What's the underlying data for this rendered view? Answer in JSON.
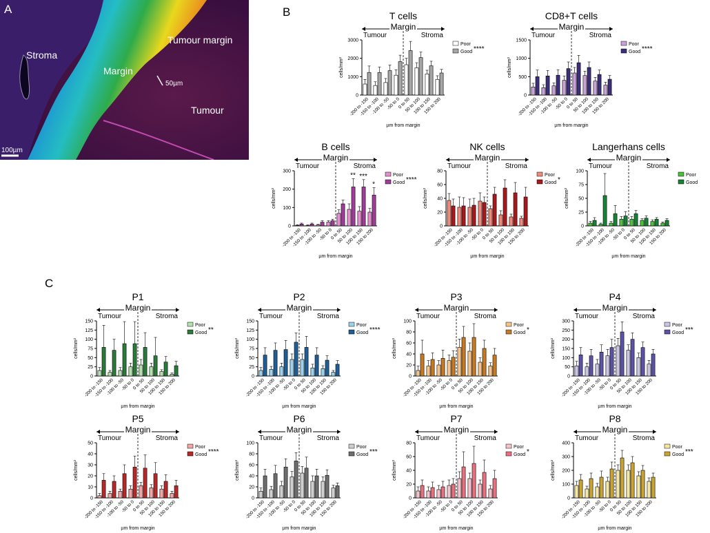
{
  "panels": {
    "a": "A",
    "b": "B",
    "c": "C"
  },
  "micrograph": {
    "labels": {
      "stroma": "Stroma",
      "margin": "Margin",
      "tumour_margin": "Tumour margin",
      "tumour": "Tumour"
    },
    "scale_small": "50µm",
    "scale_bar": "100µm"
  },
  "common": {
    "margin": "Margin",
    "tumour": "Tumour",
    "stroma": "Stroma",
    "xlabel": "µm from margin",
    "ylabel": "cells/mm²",
    "poor": "Poor",
    "good": "Good",
    "categories": [
      "-200 to -150",
      "-150 to -100",
      "-100 to -50",
      "-50 to 0",
      "0 to 50",
      "50 to 100",
      "100 to 150",
      "150 to 200"
    ]
  },
  "chart_data": [
    {
      "id": "tcells",
      "type": "bar",
      "title": "T cells",
      "sig": "****",
      "ylim": [
        0,
        3000
      ],
      "ticks": [
        0,
        1000,
        2000,
        3000
      ],
      "colors": {
        "poor": "#ffffff",
        "good": "#a6a6a6"
      },
      "series": [
        {
          "name": "Poor",
          "values": [
            600,
            520,
            680,
            1080,
            1650,
            1480,
            1150,
            850
          ],
          "errors": [
            250,
            200,
            220,
            300,
            350,
            280,
            200,
            200
          ]
        },
        {
          "name": "Good",
          "values": [
            1230,
            1230,
            1330,
            1820,
            2420,
            2040,
            1590,
            1200
          ],
          "errors": [
            350,
            300,
            300,
            350,
            500,
            300,
            250,
            200
          ]
        }
      ]
    },
    {
      "id": "cd8",
      "type": "bar",
      "title": "CD8+T cells",
      "sig": "****",
      "ylim": [
        0,
        1500
      ],
      "ticks": [
        0,
        500,
        1000,
        1500
      ],
      "colors": {
        "poor": "#c9a3d6",
        "good": "#3b2f7a"
      },
      "series": [
        {
          "name": "Poor",
          "values": [
            220,
            200,
            250,
            400,
            600,
            530,
            380,
            270
          ],
          "errors": [
            100,
            80,
            80,
            120,
            150,
            120,
            100,
            80
          ]
        },
        {
          "name": "Good",
          "values": [
            500,
            520,
            540,
            720,
            880,
            750,
            560,
            430
          ],
          "errors": [
            180,
            150,
            150,
            180,
            200,
            150,
            120,
            100
          ]
        }
      ]
    },
    {
      "id": "bcells",
      "type": "bar",
      "title": "B cells",
      "sig": "****",
      "ylim": [
        0,
        300
      ],
      "ticks": [
        0,
        100,
        200,
        300
      ],
      "colors": {
        "poor": "#e58fd0",
        "good": "#a23c9a"
      },
      "bar_sig": [
        "",
        "",
        "",
        "",
        "",
        "**",
        "***",
        "*"
      ],
      "series": [
        {
          "name": "Poor",
          "values": [
            3,
            2,
            5,
            20,
            68,
            90,
            80,
            75
          ],
          "errors": [
            3,
            3,
            3,
            8,
            20,
            30,
            25,
            20
          ]
        },
        {
          "name": "Good",
          "values": [
            10,
            10,
            20,
            28,
            120,
            212,
            212,
            168
          ],
          "errors": [
            5,
            5,
            8,
            8,
            20,
            45,
            40,
            40
          ]
        }
      ]
    },
    {
      "id": "nkcells",
      "type": "bar",
      "title": "NK cells",
      "sig": "*",
      "ylim": [
        0,
        80
      ],
      "ticks": [
        0,
        20,
        40,
        60,
        80
      ],
      "colors": {
        "poor": "#f08a7a",
        "good": "#a8191e"
      },
      "series": [
        {
          "name": "Poor",
          "values": [
            37,
            27,
            27,
            36,
            25,
            16,
            13,
            11
          ],
          "errors": [
            10,
            15,
            12,
            12,
            4,
            6,
            4,
            3
          ]
        },
        {
          "name": "Good",
          "values": [
            29,
            29,
            30,
            34,
            46,
            55,
            48,
            42
          ],
          "errors": [
            10,
            12,
            10,
            8,
            10,
            12,
            15,
            14
          ]
        }
      ]
    },
    {
      "id": "langerhans",
      "type": "bar",
      "title": "Langerhans cells",
      "sig": "",
      "ylim": [
        0,
        100
      ],
      "ticks": [
        0,
        25,
        50,
        75,
        100
      ],
      "colors": {
        "poor": "#4cc13f",
        "good": "#178233"
      },
      "series": [
        {
          "name": "Poor",
          "values": [
            5,
            3,
            5,
            12,
            12,
            10,
            8,
            5
          ],
          "errors": [
            3,
            2,
            3,
            5,
            5,
            3,
            3,
            2
          ]
        },
        {
          "name": "Good",
          "values": [
            10,
            55,
            22,
            18,
            22,
            14,
            12,
            10
          ],
          "errors": [
            5,
            40,
            15,
            8,
            6,
            4,
            3,
            3
          ]
        }
      ]
    },
    {
      "id": "p1",
      "type": "bar",
      "title": "P1",
      "sig": "**",
      "ylim": [
        0,
        150
      ],
      "ticks": [
        0,
        25,
        50,
        75,
        100,
        125,
        150
      ],
      "colors": {
        "poor": "#b7e0b0",
        "good": "#2a7a3a"
      },
      "series": [
        {
          "name": "Poor",
          "values": [
            15,
            10,
            15,
            25,
            30,
            25,
            12,
            5
          ],
          "errors": [
            8,
            5,
            8,
            10,
            15,
            10,
            5,
            3
          ]
        },
        {
          "name": "Good",
          "values": [
            78,
            70,
            88,
            88,
            78,
            55,
            38,
            28
          ],
          "errors": [
            60,
            30,
            60,
            60,
            40,
            50,
            15,
            12
          ]
        }
      ]
    },
    {
      "id": "p2",
      "type": "bar",
      "title": "P2",
      "sig": "****",
      "ylim": [
        0,
        150
      ],
      "ticks": [
        0,
        25,
        50,
        75,
        100,
        125,
        150
      ],
      "colors": {
        "poor": "#9dd2ee",
        "good": "#1f5f96"
      },
      "series": [
        {
          "name": "Poor",
          "values": [
            15,
            18,
            25,
            45,
            45,
            22,
            20,
            10
          ],
          "errors": [
            8,
            8,
            10,
            15,
            15,
            10,
            8,
            5
          ]
        },
        {
          "name": "Good",
          "values": [
            57,
            70,
            72,
            92,
            78,
            57,
            43,
            32
          ],
          "errors": [
            20,
            20,
            25,
            25,
            30,
            20,
            12,
            10
          ]
        }
      ]
    },
    {
      "id": "p3",
      "type": "bar",
      "title": "P3",
      "sig": "*",
      "ylim": [
        0,
        100
      ],
      "ticks": [
        0,
        20,
        40,
        60,
        80,
        100
      ],
      "colors": {
        "poor": "#f6c48a",
        "good": "#c77a23"
      },
      "series": [
        {
          "name": "Poor",
          "values": [
            10,
            18,
            20,
            28,
            52,
            45,
            25,
            18
          ],
          "errors": [
            8,
            10,
            8,
            10,
            15,
            15,
            8,
            6
          ]
        },
        {
          "name": "Good",
          "values": [
            40,
            30,
            32,
            34,
            70,
            70,
            50,
            38
          ],
          "errors": [
            25,
            12,
            15,
            12,
            20,
            25,
            15,
            12
          ]
        }
      ]
    },
    {
      "id": "p4",
      "type": "bar",
      "title": "P4",
      "sig": "***",
      "ylim": [
        0,
        300
      ],
      "ticks": [
        0,
        50,
        100,
        150,
        200,
        250,
        300
      ],
      "colors": {
        "poor": "#ccc6e6",
        "good": "#5d53a6"
      },
      "series": [
        {
          "name": "Poor",
          "values": [
            55,
            50,
            65,
            110,
            165,
            140,
            100,
            65
          ],
          "errors": [
            25,
            20,
            25,
            35,
            40,
            30,
            25,
            20
          ]
        },
        {
          "name": "Good",
          "values": [
            115,
            110,
            130,
            155,
            240,
            200,
            155,
            120
          ],
          "errors": [
            40,
            35,
            40,
            45,
            55,
            35,
            30,
            25
          ]
        }
      ]
    },
    {
      "id": "p5",
      "type": "bar",
      "title": "P5",
      "sig": "****",
      "ylim": [
        0,
        50
      ],
      "ticks": [
        0,
        10,
        20,
        30,
        40,
        50
      ],
      "colors": {
        "poor": "#f2a7a6",
        "good": "#b72828"
      },
      "series": [
        {
          "name": "Poor",
          "values": [
            2,
            4,
            6,
            8,
            11,
            9,
            8,
            4
          ],
          "errors": [
            2,
            2,
            2,
            3,
            3,
            3,
            3,
            2
          ]
        },
        {
          "name": "Good",
          "values": [
            16,
            15,
            22,
            28,
            27,
            22,
            15,
            11
          ],
          "errors": [
            6,
            5,
            8,
            10,
            12,
            10,
            6,
            5
          ]
        }
      ]
    },
    {
      "id": "p6",
      "type": "bar",
      "title": "P6",
      "sig": "***",
      "ylim": [
        0,
        100
      ],
      "ticks": [
        0,
        20,
        40,
        60,
        80,
        100
      ],
      "colors": {
        "poor": "#cfcfcf",
        "good": "#6e6e6e"
      },
      "series": [
        {
          "name": "Poor",
          "values": [
            12,
            15,
            22,
            38,
            45,
            30,
            30,
            18
          ],
          "errors": [
            6,
            6,
            8,
            10,
            12,
            10,
            8,
            5
          ]
        },
        {
          "name": "Good",
          "values": [
            40,
            44,
            56,
            67,
            54,
            40,
            41,
            22
          ],
          "errors": [
            12,
            15,
            15,
            15,
            20,
            12,
            10,
            5
          ]
        }
      ]
    },
    {
      "id": "p7",
      "type": "bar",
      "title": "P7",
      "sig": "*",
      "ylim": [
        0,
        80
      ],
      "ticks": [
        0,
        20,
        40,
        60,
        80
      ],
      "colors": {
        "poor": "#f5c2cb",
        "good": "#e8707f"
      },
      "series": [
        {
          "name": "Poor",
          "values": [
            10,
            10,
            12,
            18,
            28,
            28,
            20,
            13
          ],
          "errors": [
            6,
            6,
            6,
            8,
            10,
            8,
            6,
            5
          ]
        },
        {
          "name": "Good",
          "values": [
            18,
            15,
            16,
            20,
            45,
            50,
            37,
            28
          ],
          "errors": [
            8,
            8,
            8,
            8,
            22,
            25,
            18,
            12
          ]
        }
      ]
    },
    {
      "id": "p8",
      "type": "bar",
      "title": "P8",
      "sig": "***",
      "ylim": [
        0,
        400
      ],
      "ticks": [
        0,
        100,
        200,
        300,
        400
      ],
      "colors": {
        "poor": "#f4e6a3",
        "good": "#c9a333"
      },
      "series": [
        {
          "name": "Poor",
          "values": [
            90,
            65,
            80,
            120,
            200,
            200,
            160,
            120
          ],
          "errors": [
            30,
            20,
            25,
            30,
            40,
            40,
            30,
            25
          ]
        },
        {
          "name": "Good",
          "values": [
            130,
            140,
            150,
            210,
            290,
            255,
            200,
            150
          ],
          "errors": [
            40,
            40,
            45,
            50,
            55,
            45,
            35,
            30
          ]
        }
      ]
    }
  ]
}
